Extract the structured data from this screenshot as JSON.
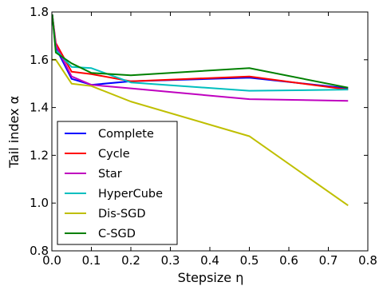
{
  "chart_data": {
    "type": "line",
    "title": "",
    "xlabel": "Stepsize η",
    "ylabel": "Tail index α",
    "xlim": [
      0.0,
      0.8
    ],
    "ylim": [
      0.8,
      1.8
    ],
    "xticks": [
      "0.0",
      "0.1",
      "0.2",
      "0.3",
      "0.4",
      "0.5",
      "0.6",
      "0.7",
      "0.8"
    ],
    "yticks": [
      "0.8",
      "1.0",
      "1.2",
      "1.4",
      "1.6",
      "1.8"
    ],
    "grid": false,
    "legend_position": "lower-left",
    "x": [
      0.001,
      0.01,
      0.05,
      0.1,
      0.2,
      0.5,
      0.75
    ],
    "series": [
      {
        "name": "Complete",
        "color": "#0000ff",
        "values": [
          1.79,
          1.65,
          1.52,
          1.495,
          1.51,
          1.525,
          1.48
        ]
      },
      {
        "name": "Cycle",
        "color": "#ff0000",
        "values": [
          1.79,
          1.67,
          1.55,
          1.54,
          1.51,
          1.53,
          1.475
        ]
      },
      {
        "name": "Star",
        "color": "#bf00bf",
        "values": [
          1.79,
          1.66,
          1.53,
          1.495,
          1.48,
          1.435,
          1.428
        ]
      },
      {
        "name": "HyperCube",
        "color": "#00bfbf",
        "values": [
          1.79,
          1.64,
          1.57,
          1.565,
          1.505,
          1.47,
          1.475
        ]
      },
      {
        "name": "Dis-SGD",
        "color": "#bfbf00",
        "values": [
          1.6,
          1.6,
          1.5,
          1.49,
          1.425,
          1.28,
          0.99
        ]
      },
      {
        "name": "C-SGD",
        "color": "#008000",
        "values": [
          1.79,
          1.63,
          1.585,
          1.545,
          1.535,
          1.565,
          1.483
        ]
      }
    ]
  }
}
